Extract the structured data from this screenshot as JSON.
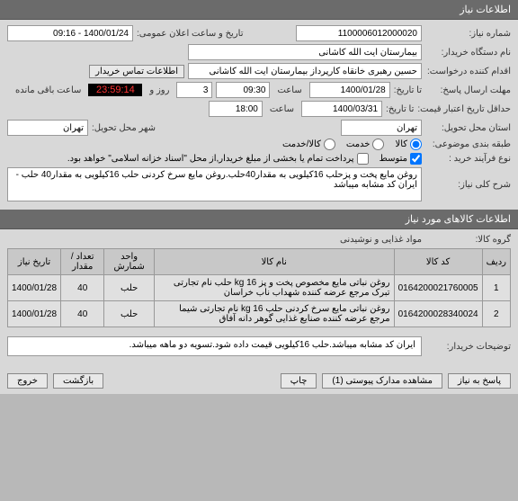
{
  "sections": {
    "info_header": "اطلاعات نیاز",
    "items_header": "اطلاعات کالاهای مورد نیاز"
  },
  "labels": {
    "need_no": "شماره نیاز:",
    "announce_time": "تاریخ و ساعت اعلان عمومی:",
    "buyer_org": "نام دستگاه خریدار:",
    "requester": "اقدام کننده درخواست:",
    "buyer_contact_btn": "اطلاعات تماس خریدار",
    "reply_deadline": "مهلت ارسال پاسخ:",
    "date_label": "تا تاریخ:",
    "time_label": "ساعت",
    "days_label": "روز و",
    "remaining": "ساعت باقی مانده",
    "price_validity": "حداقل تاریخ اعتبار قیمت:",
    "delivery_prov": "استان محل تحویل:",
    "delivery_city": "شهر محل تحویل:",
    "category": "طبقه بندی موضوعی:",
    "goods": "کالا",
    "service": "خدمت",
    "goods_service": "کالا/خدمت",
    "purchase_type": "نوع فرآیند خرید :",
    "medium": "متوسط",
    "partial_pay": "پرداخت تمام یا بخشی از مبلغ خریدار,از محل \"اسناد خزانه اسلامی\" خواهد بود.",
    "general_desc": "شرح کلی نیاز:",
    "goods_group": "گروه کالا:",
    "buyer_notes": "توضیحات خریدار:",
    "reply": "پاسخ به نیاز",
    "attachments": "مشاهده مدارک پیوستی",
    "attach_count": "(1)",
    "print": "چاپ",
    "back": "بازگشت",
    "exit": "خروج"
  },
  "values": {
    "need_no": "1100006012000020",
    "announce_time": "1400/01/24 - 09:16",
    "buyer_org": "بیمارستان آیت الله کاشانی",
    "requester": "حسین رهبری خانقاه کارپرداز بیمارستان آیت الله کاشانی",
    "reply_date": "1400/01/28",
    "reply_time": "09:30",
    "days": "3",
    "countdown": "23:59:14",
    "price_date": "1400/03/31",
    "price_time": "18:00",
    "delivery_prov": "تهران",
    "delivery_city": "تهران",
    "general_desc": "روغن مایع پخت و پزحلب 16کیلویی به مقدار40حلب.روغن مایع سرخ کردنی حلب 16کیلویی به مقدار40 حلب - ایران کد مشابه میباشد",
    "goods_group": "مواد غذایی و نوشیدنی",
    "buyer_notes": "ایران کد مشابه میباشد.حلب 16کیلویی قیمت داده شود.تسویه دو ماهه میباشد."
  },
  "table": {
    "headers": [
      "ردیف",
      "کد کالا",
      "نام کالا",
      "واحد شمارش",
      "تعداد / مقدار",
      "تاریخ نیاز"
    ],
    "rows": [
      [
        "1",
        "0164200021760005",
        "روغن نباتی مایع مخصوص پخت و پز 16 kg حلب نام تجارتی تبرک مرجع عرضه کننده شهداب ناب خراسان",
        "حلب",
        "40",
        "1400/01/28"
      ],
      [
        "2",
        "0164200028340024",
        "روغن نباتی مایع سرخ کردنی حلب 16 kg نام تجارتی شیما مرجع عرضه کننده صنایع غذایی گوهر دانه آفاق",
        "حلب",
        "40",
        "1400/01/28"
      ]
    ]
  }
}
